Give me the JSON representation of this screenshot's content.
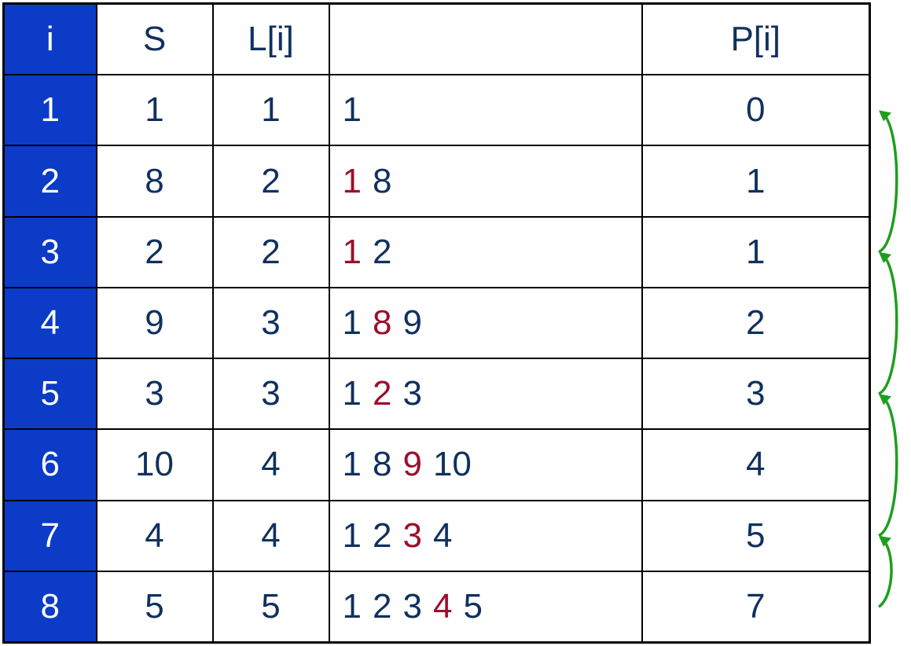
{
  "colors": {
    "header_column_bg": "#0b3bc7",
    "text": "#10315f",
    "highlight": "#9c0f2b",
    "arrow": "#1e9e1e"
  },
  "table": {
    "headers": [
      "i",
      "S",
      "L[i]",
      "",
      "P[i]"
    ],
    "rows": [
      {
        "i": "1",
        "s": "1",
        "l": "1",
        "seq": [
          "1"
        ],
        "highlight": null,
        "p": "0"
      },
      {
        "i": "2",
        "s": "8",
        "l": "2",
        "seq": [
          "1",
          "8"
        ],
        "highlight": 0,
        "p": "1"
      },
      {
        "i": "3",
        "s": "2",
        "l": "2",
        "seq": [
          "1",
          "2"
        ],
        "highlight": 0,
        "p": "1"
      },
      {
        "i": "4",
        "s": "9",
        "l": "3",
        "seq": [
          "1",
          "8",
          "9"
        ],
        "highlight": 1,
        "p": "2"
      },
      {
        "i": "5",
        "s": "3",
        "l": "3",
        "seq": [
          "1",
          "2",
          "3"
        ],
        "highlight": 1,
        "p": "3"
      },
      {
        "i": "6",
        "s": "10",
        "l": "4",
        "seq": [
          "1",
          "8",
          "9",
          "10"
        ],
        "highlight": 2,
        "p": "4"
      },
      {
        "i": "7",
        "s": "4",
        "l": "4",
        "seq": [
          "1",
          "2",
          "3",
          "4"
        ],
        "highlight": 2,
        "p": "5"
      },
      {
        "i": "8",
        "s": "5",
        "l": "5",
        "seq": [
          "1",
          "2",
          "3",
          "4",
          "5"
        ],
        "highlight": 3,
        "p": "7"
      }
    ]
  },
  "arrows": [
    {
      "from_row": 3,
      "to_row": 1
    },
    {
      "from_row": 5,
      "to_row": 3
    },
    {
      "from_row": 7,
      "to_row": 5
    },
    {
      "from_row": 8,
      "to_row": 7
    }
  ]
}
